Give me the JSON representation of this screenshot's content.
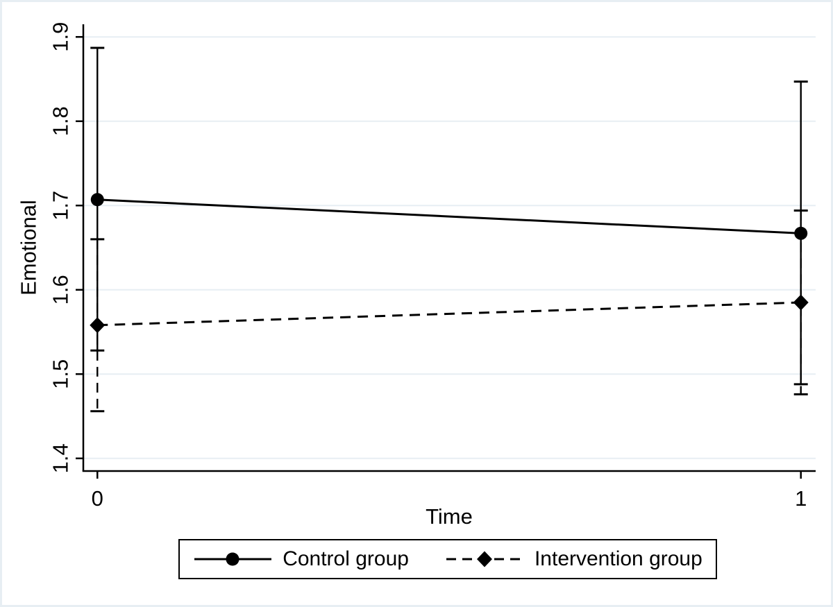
{
  "colors": {
    "line": "#000000",
    "text": "#000000",
    "gridline": "#e7eef3",
    "frame": "#e7eef3",
    "background": "#ffffff"
  },
  "chart_data": {
    "type": "line",
    "title": "",
    "xlabel": "Time",
    "ylabel": "Emotional",
    "grid": "horizontal",
    "legend_position": "bottom",
    "xticks": [
      0,
      1
    ],
    "xtick_labels": [
      "0",
      "1"
    ],
    "yticks": [
      1.4,
      1.5,
      1.6,
      1.7,
      1.8,
      1.9
    ],
    "ytick_labels": [
      "1.4",
      "1.5",
      "1.6",
      "1.7",
      "1.8",
      "1.9"
    ],
    "ylim": [
      1.385,
      1.915
    ],
    "xlim": [
      -0.02,
      1.021
    ],
    "series": [
      {
        "name": "Control group",
        "marker": "circle",
        "line_style": "solid",
        "x": [
          0,
          1
        ],
        "y": [
          1.707,
          1.667
        ],
        "ci_lower": [
          1.528,
          1.488
        ],
        "ci_upper": [
          1.887,
          1.847
        ]
      },
      {
        "name": "Intervention group",
        "marker": "diamond",
        "line_style": "dashed",
        "x": [
          0,
          1
        ],
        "y": [
          1.558,
          1.585
        ],
        "ci_lower": [
          1.456,
          1.476
        ],
        "ci_upper": [
          1.66,
          1.694
        ]
      }
    ]
  },
  "legend": {
    "items": [
      {
        "label": "Control group"
      },
      {
        "label": "Intervention group"
      }
    ]
  }
}
